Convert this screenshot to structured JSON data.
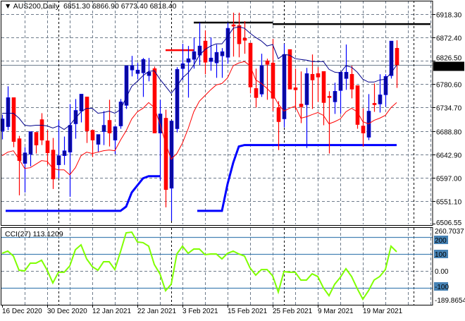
{
  "header": {
    "symbol": "AUS200,Daily",
    "ohlc": "6851.30 6866.90 6773.40 6818.40"
  },
  "indicator_label": "CCI(27) 113.1209",
  "colors": {
    "bull_body": "#0a0a9c",
    "bull_wick": "#0000ff",
    "bear": "#ff0000",
    "ma_fast": "#00008b",
    "ma_slow": "#ff0000",
    "stop_line": "#0000ff",
    "cci": "#7fff00",
    "cci_levels": "#4682b4",
    "grid": "#6e7b8b",
    "resistance": "#000000"
  },
  "chart_data": [
    {
      "type": "candlestick",
      "symbol": "AUS200",
      "timeframe": "Daily",
      "ylim": [
        6506.55,
        6918.3
      ],
      "y_ticks": [
        "6918.30",
        "6872.40",
        "6826.50",
        "6780.60",
        "6734.70",
        "6688.80",
        "6642.90",
        "6597.00",
        "6551.10",
        "6506.55"
      ],
      "x_tick_labels": [
        "16 Dec 2020",
        "30 Dec 2020",
        "12 Jan 2021",
        "22 Jan 2021",
        "3 Feb 2021",
        "15 Feb 2021",
        "25 Feb 2021",
        "9 Mar 2021",
        "19 Mar 2021"
      ],
      "x_tick_bars": [
        0,
        8,
        16,
        24,
        32,
        40,
        48,
        56,
        64
      ],
      "current_price": "6818.40",
      "grid": true,
      "ohlc": [
        [
          6688.8,
          6720.8,
          6672.1,
          6712.4
        ],
        [
          6697.1,
          6776.4,
          6690.2,
          6754.2
        ],
        [
          6754.2,
          6754.2,
          6656.8,
          6667.9
        ],
        [
          6673.5,
          6679.0,
          6562.2,
          6630.4
        ],
        [
          6624.8,
          6656.8,
          6567.8,
          6645.7
        ],
        [
          6642.9,
          6687.4,
          6619.2,
          6687.4
        ],
        [
          6686.0,
          6686.0,
          6644.3,
          6661.0
        ],
        [
          6711.0,
          6723.6,
          6661.0,
          6670.7
        ],
        [
          6669.3,
          6690.2,
          6622.0,
          6645.7
        ],
        [
          6651.2,
          6674.9,
          6574.7,
          6594.2
        ],
        [
          6622.0,
          6709.6,
          6595.6,
          6640.1
        ],
        [
          6640.1,
          6677.7,
          6622.0,
          6649.8
        ],
        [
          6647.0,
          6741.6,
          6559.4,
          6699.9
        ],
        [
          6702.7,
          6751.4,
          6673.5,
          6729.1
        ],
        [
          6727.7,
          6761.1,
          6705.5,
          6761.1
        ],
        [
          6755.6,
          6755.6,
          6665.1,
          6688.8
        ],
        [
          6690.2,
          6690.2,
          6637.3,
          6670.7
        ],
        [
          6662.4,
          6681.8,
          6647.0,
          6681.8
        ],
        [
          6687.4,
          6727.7,
          6661.0,
          6699.9
        ],
        [
          6709.6,
          6750.0,
          6658.2,
          6684.6
        ],
        [
          6670.7,
          6698.5,
          6642.9,
          6697.1
        ],
        [
          6698.5,
          6751.4,
          6693.0,
          6745.8
        ],
        [
          6738.9,
          6816.8,
          6731.9,
          6816.8
        ],
        [
          6808.4,
          6836.2,
          6795.9,
          6816.8
        ],
        [
          6801.5,
          6822.3,
          6790.3,
          6808.4
        ],
        [
          6802.8,
          6832.1,
          6755.6,
          6829.3
        ],
        [
          6797.3,
          6832.1,
          6786.2,
          6804.2
        ],
        [
          6811.2,
          6815.4,
          6684.6,
          6684.6
        ],
        [
          6684.6,
          6750.0,
          6591.4,
          6722.2
        ],
        [
          6713.8,
          6730.5,
          6538.6,
          6573.4
        ],
        [
          6576.1,
          6708.3,
          6512.1,
          6708.3
        ],
        [
          6693.0,
          6814.0,
          6686.0,
          6809.8
        ],
        [
          6811.2,
          6859.9,
          6788.9,
          6820.9
        ],
        [
          6823.7,
          6855.7,
          6754.2,
          6830.7
        ],
        [
          6829.3,
          6872.4,
          6811.2,
          6844.6
        ],
        [
          6837.6,
          6901.6,
          6818.1,
          6855.7
        ],
        [
          6865.4,
          6886.3,
          6800.1,
          6823.7
        ],
        [
          6825.1,
          6872.4,
          6807.0,
          6832.1
        ],
        [
          6822.3,
          6858.5,
          6793.1,
          6843.2
        ],
        [
          6836.2,
          6851.5,
          6793.1,
          6844.6
        ],
        [
          6833.4,
          6901.6,
          6820.9,
          6890.5
        ],
        [
          6897.4,
          6921.1,
          6834.8,
          6894.6
        ],
        [
          6896.0,
          6921.1,
          6833.4,
          6859.9
        ],
        [
          6871.0,
          6904.4,
          6840.4,
          6866.8
        ],
        [
          6861.3,
          6861.3,
          6762.5,
          6775.0
        ],
        [
          6772.2,
          6811.2,
          6734.7,
          6754.2
        ],
        [
          6761.1,
          6840.4,
          6755.6,
          6816.8
        ],
        [
          6826.5,
          6830.7,
          6750.0,
          6819.5
        ],
        [
          6822.3,
          6869.6,
          6727.7,
          6752.8
        ],
        [
          6734.7,
          6747.2,
          6651.2,
          6706.9
        ],
        [
          6712.4,
          6859.9,
          6695.7,
          6839.0
        ],
        [
          6848.7,
          6848.7,
          6770.8,
          6770.8
        ],
        [
          6773.6,
          6811.2,
          6730.5,
          6769.5
        ],
        [
          6741.6,
          6805.6,
          6704.1,
          6736.1
        ],
        [
          6740.2,
          6812.6,
          6655.4,
          6801.5
        ],
        [
          6800.1,
          6839.0,
          6731.9,
          6788.9
        ],
        [
          6801.5,
          6814.0,
          6745.8,
          6794.5
        ],
        [
          6805.6,
          6805.6,
          6699.9,
          6744.4
        ],
        [
          6756.9,
          6766.7,
          6644.3,
          6754.2
        ],
        [
          6745.8,
          6783.4,
          6722.2,
          6766.7
        ],
        [
          6768.1,
          6804.2,
          6722.2,
          6804.2
        ],
        [
          6791.7,
          6858.5,
          6769.5,
          6804.2
        ],
        [
          6800.1,
          6816.8,
          6752.8,
          6770.8
        ],
        [
          6777.8,
          6777.8,
          6693.0,
          6701.3
        ],
        [
          6698.5,
          6733.3,
          6658.2,
          6684.6
        ],
        [
          6676.3,
          6761.1,
          6670.7,
          6727.7
        ],
        [
          6743.0,
          6782.0,
          6726.3,
          6740.2
        ],
        [
          6741.6,
          6800.1,
          6724.9,
          6759.7
        ],
        [
          6759.7,
          6800.1,
          6736.1,
          6795.9
        ],
        [
          6797.3,
          6865.4,
          6791.7,
          6865.4
        ],
        [
          6851.3,
          6866.9,
          6773.4,
          6818.4
        ]
      ],
      "ma_fast": [
        6723.6,
        6723.6,
        6723.6,
        6713.8,
        6699.9,
        6698.5,
        6699.9,
        6699.9,
        6698.5,
        6694.4,
        6698.5,
        6691.6,
        6699.9,
        6713.8,
        6726.3,
        6733.3,
        6733.3,
        6723.6,
        6724.9,
        6727.7,
        6723.6,
        6730.5,
        6754.2,
        6776.4,
        6786.2,
        6797.3,
        6805.6,
        6807.0,
        6790.3,
        6776.4,
        6762.5,
        6776.4,
        6793.1,
        6802.8,
        6818.1,
        6837.6,
        6848.7,
        6855.7,
        6859.9,
        6859.9,
        6873.8,
        6890.5,
        6893.3,
        6890.5,
        6880.7,
        6872.4,
        6865.4,
        6855.7,
        6858.5,
        6830.7,
        6839.0,
        6837.6,
        6830.7,
        6829.3,
        6827.9,
        6825.1,
        6825.1,
        6825.1,
        6809.8,
        6804.2,
        6802.8,
        6816.8,
        6814.0,
        6804.2,
        6790.3,
        6784.8,
        6784.8,
        6788.9,
        6790.3,
        6802.8,
        6818.1
      ],
      "ma_slow": [
        6640.1,
        6647.0,
        6649.8,
        6633.2,
        6615.1,
        6616.5,
        6623.4,
        6630.4,
        6629.0,
        6615.1,
        6612.3,
        6612.3,
        6602.6,
        6616.5,
        6640.1,
        6647.0,
        6644.3,
        6647.0,
        6649.8,
        6651.2,
        6649.8,
        6670.7,
        6688.8,
        6712.4,
        6726.3,
        6733.3,
        6744.4,
        6734.7,
        6702.7,
        6665.1,
        6633.2,
        6644.3,
        6665.1,
        6693.0,
        6726.3,
        6747.2,
        6758.3,
        6769.5,
        6779.2,
        6782.0,
        6793.1,
        6816.8,
        6822.3,
        6825.1,
        6816.8,
        6788.9,
        6782.0,
        6772.2,
        6761.1,
        6741.6,
        6727.7,
        6733.3,
        6737.5,
        6713.8,
        6716.6,
        6720.8,
        6724.9,
        6719.4,
        6702.7,
        6706.9,
        6712.4,
        6726.3,
        6733.3,
        6726.3,
        6706.9,
        6702.7,
        6709.6,
        6713.8,
        6719.4,
        6734.7,
        6744.4
      ],
      "stop_line": [
        null,
        6531.6,
        6531.6,
        6531.6,
        6531.6,
        6531.6,
        6531.6,
        6531.6,
        6531.6,
        6531.6,
        6531.6,
        6531.6,
        6531.6,
        6531.6,
        6531.6,
        6531.6,
        6531.6,
        6531.6,
        6531.6,
        6531.6,
        6531.6,
        6531.6,
        6540.0,
        6567.8,
        6581.7,
        6595.6,
        6599.8,
        6599.8,
        6599.8,
        null,
        null,
        null,
        null,
        null,
        null,
        6531.6,
        6531.6,
        6531.6,
        6531.6,
        6531.6,
        6584.5,
        6626.2,
        6658.2,
        6661.0,
        6661.0,
        6661.0,
        6661.0,
        6661.0,
        6661.0,
        6661.0,
        6661.0,
        6661.0,
        6661.0,
        6661.0,
        6661.0,
        6661.0,
        6661.0,
        6661.0,
        6661.0,
        6661.0,
        6661.0,
        6661.0,
        6661.0,
        6661.0,
        6661.0,
        6661.0,
        6661.0,
        6661.0,
        6661.0,
        6661.0,
        6661.0
      ],
      "resistance_lines": [
        {
          "price": 6901.6,
          "from_bar": 34,
          "to_bar": 48,
          "color": "#000000"
        },
        {
          "price": 6898.8,
          "from_bar": 48,
          "to_bar": 76,
          "color": "#000000"
        },
        {
          "price": 6847.4,
          "from_bar": 29,
          "to_bar": 34,
          "color": "#ff0000"
        }
      ]
    },
    {
      "type": "line",
      "name": "CCI(27)",
      "ylim": [
        -189.8654,
        260.7037
      ],
      "y_tick_labels": [
        "260.7037",
        "200",
        "100",
        "0.00",
        "-100",
        "-189.8654"
      ],
      "levels": [
        200,
        100,
        0,
        -100
      ],
      "values": [
        104,
        117,
        88,
        4,
        0,
        46,
        46,
        63,
        4,
        -71,
        -8,
        -8,
        29,
        125,
        154,
        71,
        25,
        4,
        54,
        54,
        8,
        113,
        225,
        229,
        171,
        167,
        146,
        38,
        -17,
        -117,
        -79,
        100,
        146,
        104,
        129,
        129,
        96,
        100,
        100,
        71,
        104,
        117,
        100,
        88,
        17,
        -25,
        8,
        8,
        -29,
        -125,
        -4,
        -8,
        -8,
        -54,
        -54,
        -17,
        -33,
        -100,
        -146,
        -79,
        -38,
        13,
        -33,
        -104,
        -167,
        -117,
        -54,
        -33,
        8,
        146,
        113.1209
      ]
    }
  ]
}
